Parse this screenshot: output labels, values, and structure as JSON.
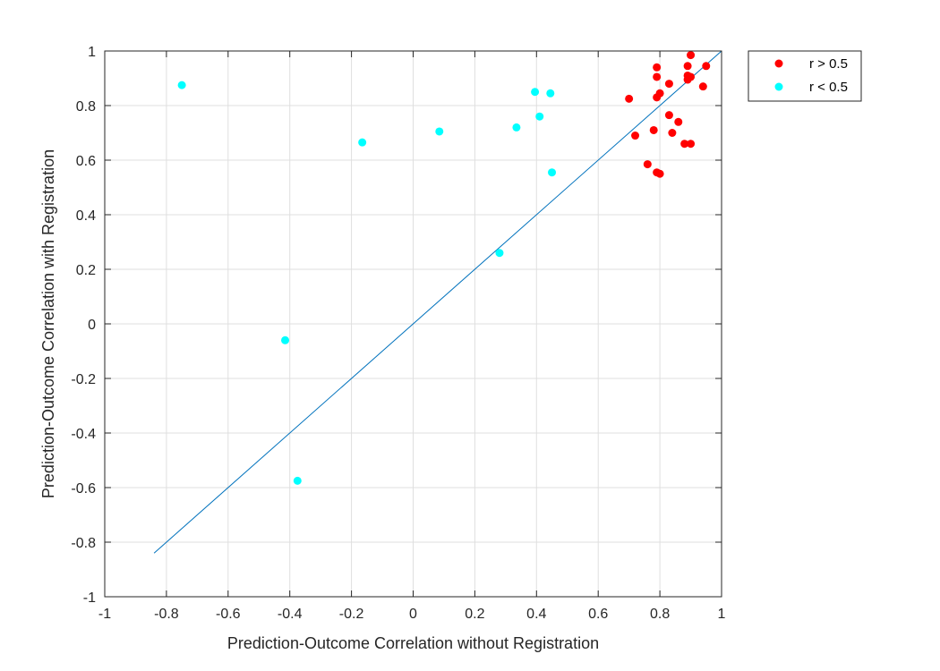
{
  "chart_data": {
    "type": "scatter",
    "title": "",
    "xlabel": "Prediction-Outcome Correlation without Registration",
    "ylabel": "Prediction-Outcome Correlation with Registration",
    "xlim": [
      -1,
      1
    ],
    "ylim": [
      -1,
      1
    ],
    "xticks": [
      -1,
      -0.8,
      -0.6,
      -0.4,
      -0.2,
      0,
      0.2,
      0.4,
      0.6,
      0.8,
      1
    ],
    "yticks": [
      -1,
      -0.8,
      -0.6,
      -0.4,
      -0.2,
      0,
      0.2,
      0.4,
      0.6,
      0.8,
      1
    ],
    "xtick_labels": [
      "-1",
      "-0.8",
      "-0.6",
      "-0.4",
      "-0.2",
      "0",
      "0.2",
      "0.4",
      "0.6",
      "0.8",
      "1"
    ],
    "ytick_labels": [
      "-1",
      "-0.8",
      "-0.6",
      "-0.4",
      "-0.2",
      "0",
      "0.2",
      "0.4",
      "0.6",
      "0.8",
      "1"
    ],
    "grid": true,
    "legend_position": "outside-top-right",
    "series": [
      {
        "name": "r > 0.5",
        "color": "#ff0000",
        "points": [
          [
            0.9,
            0.985
          ],
          [
            0.95,
            0.945
          ],
          [
            0.89,
            0.945
          ],
          [
            0.79,
            0.94
          ],
          [
            0.79,
            0.905
          ],
          [
            0.89,
            0.91
          ],
          [
            0.9,
            0.905
          ],
          [
            0.89,
            0.895
          ],
          [
            0.83,
            0.88
          ],
          [
            0.94,
            0.87
          ],
          [
            0.8,
            0.845
          ],
          [
            0.79,
            0.83
          ],
          [
            0.7,
            0.825
          ],
          [
            0.83,
            0.765
          ],
          [
            0.86,
            0.74
          ],
          [
            0.78,
            0.71
          ],
          [
            0.84,
            0.7
          ],
          [
            0.72,
            0.69
          ],
          [
            0.88,
            0.66
          ],
          [
            0.9,
            0.66
          ],
          [
            0.76,
            0.585
          ],
          [
            0.79,
            0.555
          ],
          [
            0.8,
            0.55
          ]
        ]
      },
      {
        "name": "r < 0.5",
        "color": "#00ffff",
        "points": [
          [
            -0.75,
            0.875
          ],
          [
            -0.165,
            0.665
          ],
          [
            0.085,
            0.705
          ],
          [
            0.335,
            0.72
          ],
          [
            0.395,
            0.85
          ],
          [
            0.445,
            0.845
          ],
          [
            0.41,
            0.76
          ],
          [
            0.45,
            0.555
          ],
          [
            0.28,
            0.26
          ],
          [
            -0.415,
            -0.06
          ],
          [
            -0.375,
            -0.575
          ]
        ]
      }
    ],
    "reference_line": {
      "color": "#0072bd",
      "x": [
        -0.84,
        1.0
      ],
      "y": [
        -0.84,
        1.0
      ]
    }
  }
}
